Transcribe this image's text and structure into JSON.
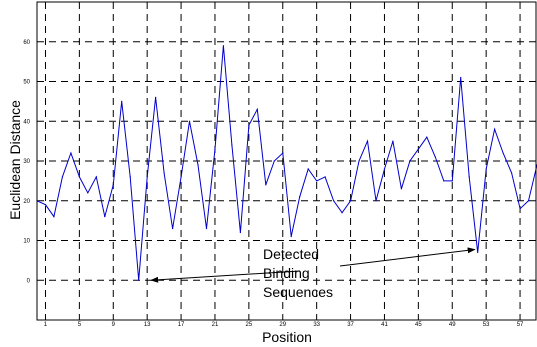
{
  "chart_data": {
    "type": "line",
    "title": "",
    "xlabel": "Position",
    "ylabel": "Euclidean Distance",
    "xlim": [
      0,
      59
    ],
    "ylim": [
      -10,
      70
    ],
    "grid": true,
    "x_ticks": [
      1,
      5,
      9,
      13,
      17,
      21,
      25,
      29,
      33,
      37,
      41,
      45,
      49,
      53,
      57
    ],
    "y_ticks": [
      0,
      10,
      20,
      30,
      40,
      50,
      60
    ],
    "series": [
      {
        "color": "#0000cc",
        "x": [
          0,
          1,
          2,
          3,
          4,
          5,
          6,
          7,
          8,
          9,
          10,
          11,
          12,
          13,
          14,
          15,
          16,
          17,
          18,
          19,
          20,
          21,
          22,
          23,
          24,
          25,
          26,
          27,
          28,
          29,
          30,
          31,
          32,
          33,
          34,
          35,
          36,
          37,
          38,
          39,
          40,
          41,
          42,
          43,
          44,
          45,
          46,
          47,
          48,
          49,
          50,
          51,
          52,
          53,
          54,
          55,
          56,
          57,
          58,
          59
        ],
        "values": [
          20,
          19,
          16,
          26,
          32,
          26,
          22,
          26,
          16,
          24,
          45,
          26,
          0,
          26,
          46,
          27,
          13,
          26,
          40,
          29,
          13,
          33,
          59,
          34,
          12,
          39,
          43,
          24,
          30,
          32,
          11,
          21,
          28,
          25,
          26,
          20,
          17,
          20,
          30,
          35,
          20,
          28,
          35,
          23,
          30,
          33,
          36,
          31,
          25,
          25,
          51,
          26,
          7,
          28,
          38,
          32,
          27,
          18,
          20,
          29
        ]
      }
    ],
    "annotation": {
      "lines": [
        "Detected",
        "Binding",
        "Sequences"
      ],
      "targets": [
        {
          "x": 13,
          "y": 0
        },
        {
          "x": 52,
          "y": 8
        }
      ]
    }
  }
}
